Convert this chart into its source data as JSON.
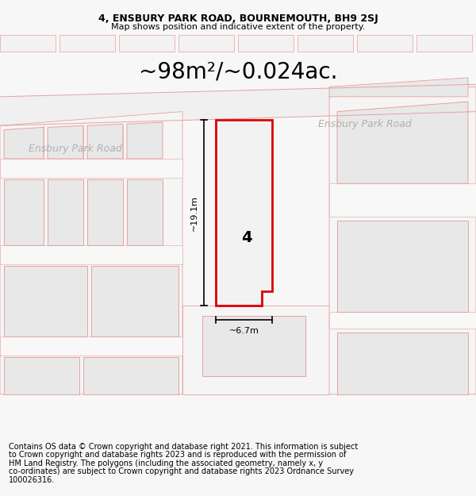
{
  "title_line1": "4, ENSBURY PARK ROAD, BOURNEMOUTH, BH9 2SJ",
  "title_line2": "Map shows position and indicative extent of the property.",
  "area_text": "~98m²/~0.024ac.",
  "road_label_left": "Ensbury Park Road",
  "road_label_right": "Ensbury Park Road",
  "number_label": "4",
  "dim_height": "~19.1m",
  "dim_width": "~6.7m",
  "footer_lines": [
    "Contains OS data © Crown copyright and database right 2021. This information is subject",
    "to Crown copyright and database rights 2023 and is reproduced with the permission of",
    "HM Land Registry. The polygons (including the associated geometry, namely x, y",
    "co-ordinates) are subject to Crown copyright and database rights 2023 Ordnance Survey",
    "100026316."
  ],
  "bg_color": "#f7f7f7",
  "map_bg": "#ffffff",
  "border_color": "#e8a0a0",
  "highlight_color": "#dd0000",
  "polygon_fill": "#e8e8e8",
  "title_font_size": 9,
  "subtitle_font_size": 8,
  "area_font_size": 20,
  "road_label_font_size": 9,
  "number_font_size": 14,
  "footer_font_size": 7
}
